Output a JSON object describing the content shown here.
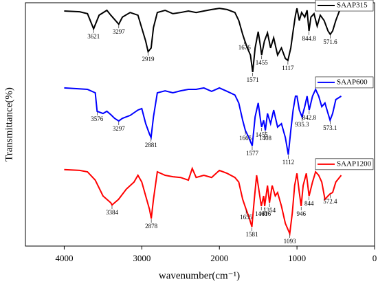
{
  "chart_data": {
    "type": "line",
    "xlabel": "wavenumber(cm⁻¹)",
    "ylabel": "Transmittance(%)",
    "xlim": [
      4500,
      0
    ],
    "xticks": [
      4000,
      3000,
      2000,
      1000,
      0
    ],
    "ylim": [
      0,
      100
    ],
    "legend": "right",
    "series": [
      {
        "name": "SAAP315",
        "color": "#000000",
        "x": [
          4000,
          3800,
          3700,
          3621,
          3550,
          3450,
          3400,
          3297,
          3250,
          3150,
          3050,
          2950,
          2919,
          2880,
          2850,
          2800,
          2700,
          2600,
          2500,
          2400,
          2300,
          2200,
          2100,
          2000,
          1900,
          1800,
          1750,
          1700,
          1676,
          1640,
          1600,
          1571,
          1540,
          1500,
          1470,
          1455,
          1420,
          1380,
          1340,
          1300,
          1250,
          1200,
          1150,
          1117,
          1080,
          1050,
          1020,
          1000,
          970,
          940,
          900,
          870,
          844.8,
          820,
          780,
          740,
          700,
          650,
          600,
          571.6,
          540,
          500,
          450,
          420
        ],
        "values": [
          96.6,
          96.3,
          95.5,
          89.3,
          94.9,
          96.9,
          94.9,
          91.2,
          94.1,
          96.0,
          94.9,
          84.2,
          79.9,
          81.4,
          89.8,
          96.0,
          96.9,
          95.5,
          96.0,
          96.6,
          96.0,
          96.6,
          97.2,
          97.7,
          97.2,
          96.0,
          92.7,
          87.0,
          84.7,
          81.4,
          78.5,
          71.5,
          81.4,
          88.1,
          81.9,
          78.5,
          84.2,
          87.6,
          81.4,
          85.6,
          78.5,
          81.4,
          77.1,
          76.3,
          81.4,
          88.4,
          94.9,
          97.7,
          92.7,
          96.0,
          94.1,
          96.9,
          88.4,
          94.1,
          95.5,
          90.4,
          94.9,
          92.7,
          88.4,
          87.0,
          88.4,
          92.7,
          96.9,
          97.2
        ],
        "peaks": [
          3621,
          3297,
          2919,
          1676,
          1571,
          1455,
          1117,
          844.8,
          571.6
        ]
      },
      {
        "name": "SAAP600",
        "color": "#0000ff",
        "x": [
          4000,
          3700,
          3600,
          3576,
          3500,
          3450,
          3400,
          3350,
          3297,
          3250,
          3150,
          3050,
          3000,
          2950,
          2900,
          2881,
          2850,
          2800,
          2700,
          2600,
          2500,
          2400,
          2300,
          2200,
          2100,
          2000,
          1900,
          1800,
          1750,
          1700,
          1665,
          1620,
          1577,
          1540,
          1500,
          1470,
          1455,
          1430,
          1408,
          1380,
          1340,
          1300,
          1250,
          1200,
          1150,
          1112,
          1080,
          1050,
          1020,
          1000,
          970,
          935.3,
          900,
          870,
          842.8,
          800,
          760,
          720,
          680,
          640,
          600,
          573.1,
          540,
          500,
          430
        ],
        "values": [
          65.0,
          64.4,
          63.0,
          55.4,
          54.5,
          55.4,
          54.0,
          52.5,
          51.4,
          52.5,
          53.7,
          55.9,
          56.5,
          50.3,
          46.0,
          44.6,
          53.1,
          63.0,
          63.8,
          63.0,
          63.8,
          64.4,
          64.4,
          65.0,
          63.6,
          65.0,
          63.6,
          62.1,
          58.8,
          51.7,
          47.5,
          44.6,
          41.2,
          53.1,
          58.8,
          51.7,
          48.9,
          51.7,
          47.5,
          54.5,
          50.3,
          55.9,
          48.9,
          50.3,
          44.6,
          37.6,
          47.5,
          55.9,
          61.6,
          61.6,
          55.9,
          53.1,
          57.3,
          61.6,
          55.9,
          61.6,
          64.4,
          61.6,
          57.3,
          58.8,
          54.5,
          51.7,
          54.5,
          60.2,
          61.6
        ],
        "peaks": [
          3576,
          3297,
          2881,
          1665,
          1577,
          1455,
          1408,
          1112,
          935.3,
          842.8,
          573.1
        ]
      },
      {
        "name": "SAAP1200",
        "color": "#ff0000",
        "x": [
          4000,
          3800,
          3700,
          3600,
          3500,
          3400,
          3384,
          3300,
          3200,
          3100,
          3050,
          3000,
          2950,
          2900,
          2878,
          2850,
          2800,
          2700,
          2600,
          2500,
          2400,
          2350,
          2300,
          2200,
          2100,
          2000,
          1900,
          1800,
          1750,
          1700,
          1655,
          1620,
          1581,
          1550,
          1520,
          1500,
          1460,
          1430,
          1416,
          1380,
          1354,
          1320,
          1280,
          1250,
          1200,
          1150,
          1093,
          1060,
          1030,
          1000,
          970,
          946,
          920,
          880,
          844,
          800,
          760,
          720,
          680,
          640,
          600,
          572.4,
          540,
          500,
          430
        ],
        "values": [
          31.4,
          31.1,
          30.5,
          27.1,
          20.6,
          17.8,
          16.9,
          19.2,
          23.4,
          26.3,
          29.1,
          26.3,
          20.6,
          15.0,
          11.3,
          19.2,
          30.5,
          29.1,
          28.5,
          28.2,
          27.1,
          31.9,
          28.2,
          29.1,
          28.2,
          31.1,
          29.9,
          28.2,
          26.3,
          19.2,
          15.0,
          12.1,
          7.9,
          19.2,
          29.1,
          24.9,
          16.4,
          20.6,
          16.4,
          24.9,
          17.8,
          24.9,
          20.6,
          22.0,
          16.4,
          9.3,
          5.1,
          13.6,
          24.9,
          29.9,
          22.0,
          16.4,
          24.9,
          29.9,
          20.6,
          26.3,
          30.5,
          29.1,
          26.3,
          19.2,
          20.6,
          21.5,
          22.0,
          26.3,
          29.1
        ],
        "peaks": [
          3384,
          2878,
          1655,
          1581,
          1460,
          1416,
          1354,
          1093,
          946,
          844,
          572.4
        ]
      }
    ]
  }
}
